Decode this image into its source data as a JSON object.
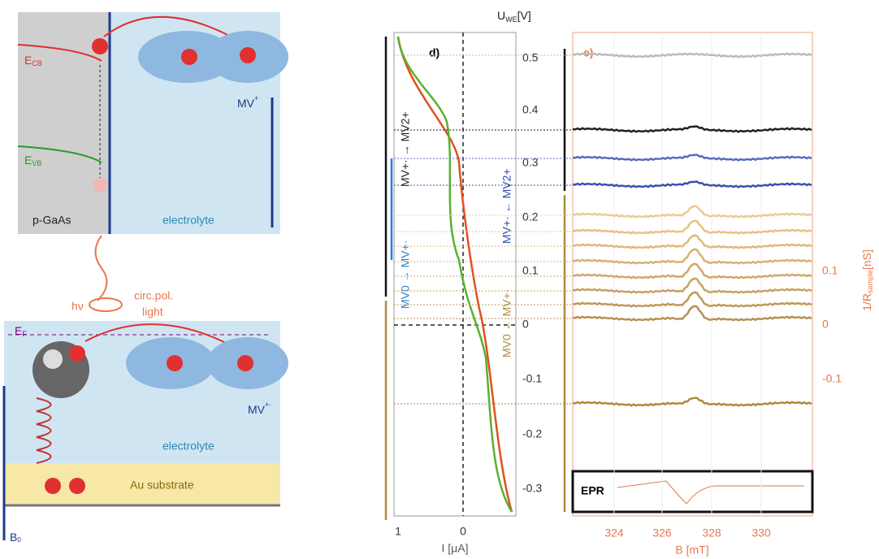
{
  "schematic_top": {
    "ecb": "E",
    "ecb_sub": "CB",
    "evb": "E",
    "evb_sub": "VB",
    "semiconductor": "p-GaAs",
    "electrolyte": "electrolyte",
    "mv": "MV",
    "mv_sup": "+",
    "hv": "hν",
    "light_1": "circ.pol.",
    "light_2": "light"
  },
  "schematic_bottom": {
    "ef": "E",
    "ef_sub": "F",
    "mv": "MV",
    "mv_sup": "+·",
    "electrolyte": "electrolyte",
    "substrate": "Au substrate",
    "b0": "B",
    "b0_sub": "0"
  },
  "panel_d": {
    "label": "d)",
    "y_axis": "U",
    "y_axis_sub": "WE",
    "y_axis_unit": "[V]",
    "yticks": [
      "0.5",
      "0.4",
      "0.3",
      "0.2",
      "0.1",
      "0",
      "-0.1",
      "-0.2",
      "-0.3"
    ],
    "xticks": [
      "1",
      "0"
    ],
    "x_axis": "I [μA]",
    "process_black": "MV+· → MV2+",
    "process_blue_1": "MV0 → MV+·",
    "process_blue_2": "MV+· ← MV2+",
    "process_brown": "MV0 ← MV+·"
  },
  "panel_e": {
    "label": "e)",
    "xticks": [
      "324",
      "326",
      "328",
      "330"
    ],
    "x_axis": "B [mT]",
    "yticks": [
      "0.1",
      "0",
      "-0.1"
    ],
    "y_axis": "1/R",
    "y_axis_sub": "sample",
    "y_axis_unit": "[nS]",
    "epr": "EPR"
  }
}
